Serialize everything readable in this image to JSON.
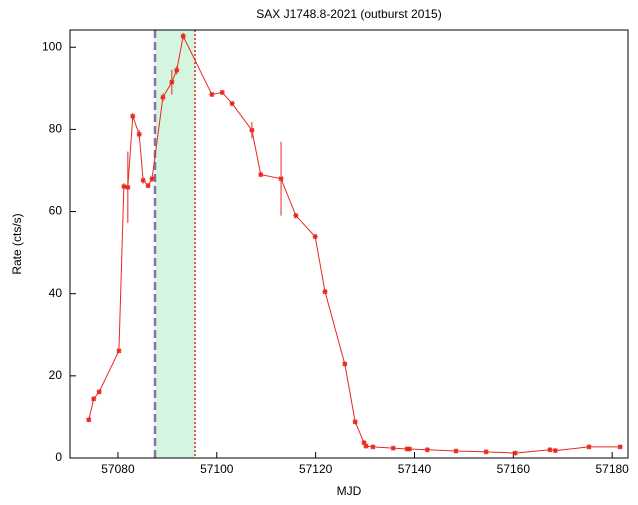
{
  "chart_data": {
    "type": "line",
    "title": "SAX J1748.8-2021 (outburst 2015)",
    "x_label": "MJD",
    "y_label": "Rate (cts/s)",
    "xlim": [
      57070.3,
      57183.2
    ],
    "ylim": [
      0,
      104.2
    ],
    "xticks": [
      57080,
      57100,
      57120,
      57140,
      57160,
      57180
    ],
    "yticks": [
      0,
      20,
      40,
      60,
      80,
      100
    ],
    "shaded_region": [
      57087.5,
      57095.6
    ],
    "shade_color": "#d4f5e0",
    "start_line_color": "#8a6fa8",
    "end_line_color": "#d6281e",
    "series": [
      {
        "name": "Rate",
        "color": "#e8281e",
        "x": [
          57074.1,
          57075.1,
          57076.2,
          57080.2,
          57081.2,
          57082.0,
          57083.0,
          57084.3,
          57085.1,
          57086.1,
          57086.9,
          57089.1,
          57090.9,
          57091.9,
          57093.2,
          57099.0,
          57101.1,
          57103.1,
          57107.1,
          57108.9,
          57113.0,
          57116.0,
          57119.9,
          57121.9,
          57125.9,
          57128.0,
          57129.8,
          57130.2,
          57131.6,
          57135.7,
          57138.5,
          57139.0,
          57142.6,
          57148.4,
          57154.5,
          57160.4,
          57167.4,
          57168.5,
          57175.3,
          57181.6
        ],
        "values": [
          9.3,
          14.4,
          16.1,
          26.1,
          66.1,
          65.9,
          83.2,
          78.8,
          67.6,
          66.3,
          68.0,
          87.8,
          91.5,
          94.4,
          102.7,
          88.5,
          89.0,
          86.3,
          79.8,
          69.0,
          68.0,
          59.0,
          53.9,
          40.5,
          22.9,
          8.8,
          3.7,
          2.9,
          2.7,
          2.4,
          2.2,
          2.2,
          2.0,
          1.7,
          1.5,
          1.2,
          2.0,
          1.8,
          2.7,
          2.7
        ],
        "errors": [
          0.5,
          0.5,
          0.5,
          0.6,
          0.8,
          8.7,
          0.8,
          1.0,
          0.8,
          0.6,
          0.8,
          1.0,
          3.0,
          1.0,
          0.8,
          0.6,
          0.6,
          0.6,
          2.0,
          0.6,
          9.0,
          0.6,
          0.6,
          0.6,
          0.6,
          0.5,
          0.5,
          0.4,
          0.4,
          0.4,
          0.3,
          0.3,
          0.3,
          0.3,
          0.3,
          0.3,
          0.3,
          0.3,
          0.3,
          0.3
        ]
      }
    ]
  }
}
